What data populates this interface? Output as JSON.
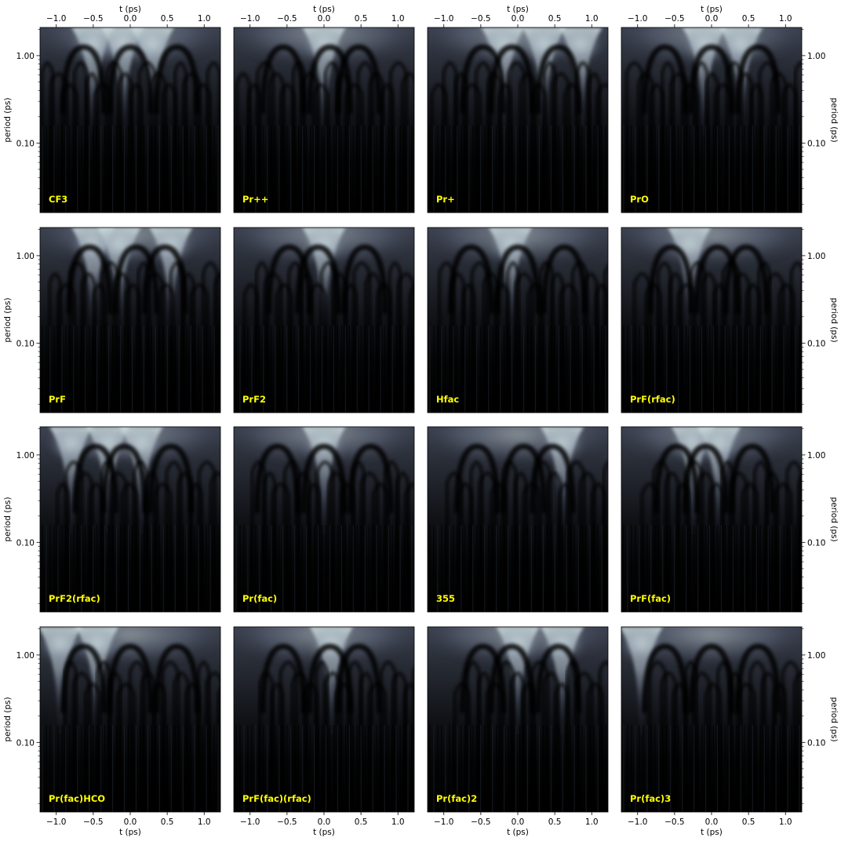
{
  "chart_data": {
    "type": "heatmap",
    "layout": {
      "rows": 4,
      "cols": 4
    },
    "colormap": "bone",
    "xlabel": "t (ps)",
    "ylabel": "period (ps)",
    "xlim": [
      -1.22,
      1.22
    ],
    "ylim": [
      0.016,
      2.1
    ],
    "yscale": "log",
    "xticks": [
      -1.0,
      -0.5,
      0.0,
      0.5,
      1.0
    ],
    "xtick_labels": [
      "−1.0",
      "−0.5",
      "0.0",
      "0.5",
      "1.0"
    ],
    "yticks": [
      1.0,
      0.1
    ],
    "ytick_labels": [
      "1.00",
      "0.10"
    ],
    "panels": [
      {
        "label": "CF3",
        "bright_centers_t": [
          -0.5,
          -0.1,
          0.3
        ]
      },
      {
        "label": "Pr++",
        "bright_centers_t": [
          0.0
        ]
      },
      {
        "label": "Pr+",
        "bright_centers_t": [
          -0.2,
          0.35,
          0.85
        ]
      },
      {
        "label": "PrO",
        "bright_centers_t": [
          -0.1,
          0.4
        ]
      },
      {
        "label": "PrF",
        "bright_centers_t": [
          -0.5,
          -0.15,
          0.55
        ]
      },
      {
        "label": "PrF2",
        "bright_centers_t": [
          0.0
        ]
      },
      {
        "label": "Hfac",
        "bright_centers_t": [
          -0.1
        ]
      },
      {
        "label": "PrF(rfac)",
        "bright_centers_t": [
          -0.3
        ]
      },
      {
        "label": "PrF2(rfac)",
        "bright_centers_t": [
          -0.8,
          -0.3,
          0.15
        ]
      },
      {
        "label": "Pr(fac)",
        "bright_centers_t": [
          0.0
        ]
      },
      {
        "label": "355",
        "bright_centers_t": [
          0.6
        ]
      },
      {
        "label": "PrF(fac)",
        "bright_centers_t": [
          -0.25,
          0.1
        ]
      },
      {
        "label": "Pr(fac)HCO",
        "bright_centers_t": [
          -0.95,
          -0.45
        ]
      },
      {
        "label": "PrF(fac)(rfac)",
        "bright_centers_t": [
          0.1
        ]
      },
      {
        "label": "Pr(fac)2",
        "bright_centers_t": [
          0.0,
          0.6
        ]
      },
      {
        "label": "Pr(fac)3",
        "bright_centers_t": [
          -0.95
        ]
      }
    ]
  }
}
